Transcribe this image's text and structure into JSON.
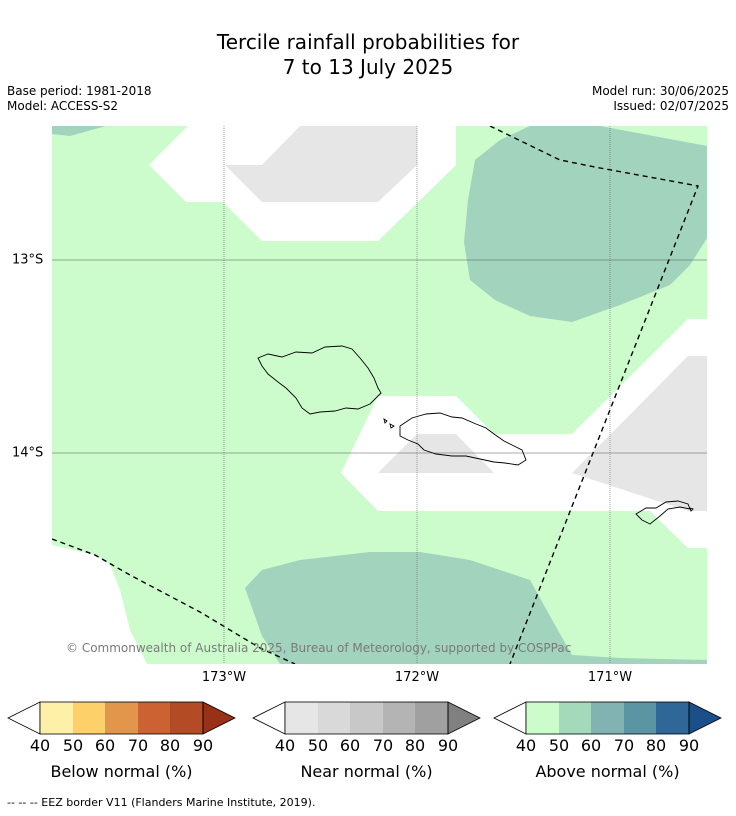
{
  "title": {
    "line1": "Tercile rainfall probabilities for",
    "line2": "7 to 13 July 2025"
  },
  "meta": {
    "base_period": "Base period: 1981-2018",
    "model": "Model: ACCESS-S2",
    "model_run": "Model run: 30/06/2025",
    "issued": "Issued: 02/07/2025"
  },
  "map": {
    "copyright": "© Commonwealth of Australia 2025, Bureau of Meteorology, supported by COSPPac",
    "lon_labels": [
      "173°W",
      "172°W",
      "171°W"
    ],
    "lat_labels": [
      "13°S",
      "14°S"
    ]
  },
  "colorbars": [
    {
      "label": "Below normal (%)",
      "ticks": [
        "40",
        "50",
        "60",
        "70",
        "80",
        "90"
      ],
      "colors": [
        "#fff0a8",
        "#fed06a",
        "#e1964b",
        "#cc6232",
        "#b34b24"
      ],
      "extend_color": "#993117"
    },
    {
      "label": "Near normal (%)",
      "ticks": [
        "40",
        "50",
        "60",
        "70",
        "80",
        "90"
      ],
      "colors": [
        "#e6e6e6",
        "#d9d9d9",
        "#c8c8c8",
        "#b4b4b4",
        "#a0a0a0"
      ],
      "extend_color": "#808080"
    },
    {
      "label": "Above normal (%)",
      "ticks": [
        "40",
        "50",
        "60",
        "70",
        "80",
        "90"
      ],
      "colors": [
        "#ccfccc",
        "#a4d9bc",
        "#80b3b1",
        "#5b94a3",
        "#2f6898"
      ],
      "extend_color": "#1a4f8a"
    }
  ],
  "colors": {
    "above_40": "#ccfccc",
    "above_50": "#a1d3bd",
    "near_40": "#e6e6e6",
    "land_outline": "#000000",
    "eez": "#000000"
  },
  "footnote": "--  --  -- EEZ border V11 (Flanders Marine Institute, 2019)."
}
